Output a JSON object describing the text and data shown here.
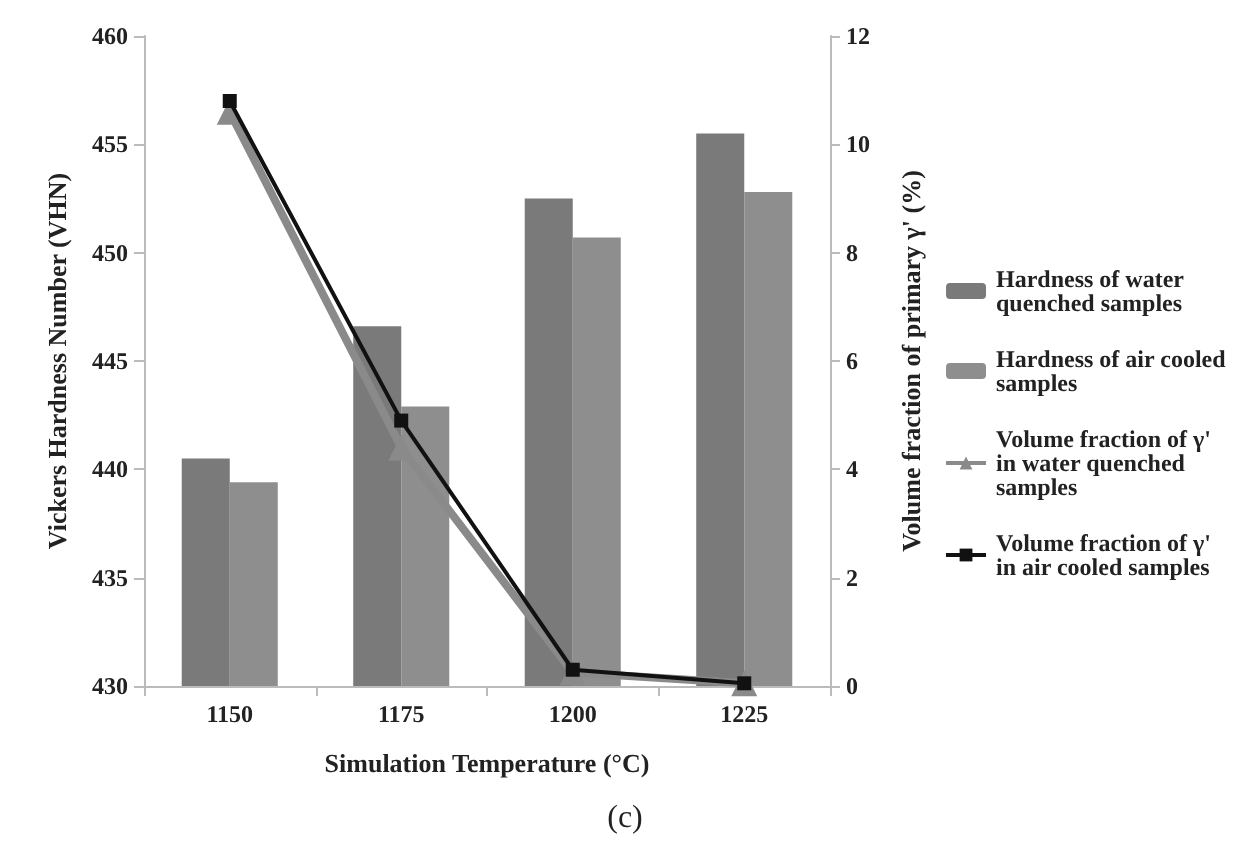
{
  "chart_data": {
    "type": "bar",
    "xlabel": "Simulation Temperature (°C)",
    "ylabel": "Vickers Hardness Number (VHN)",
    "y2label": "Volume fraction of primary γ' (%)",
    "categories": [
      "1150",
      "1175",
      "1200",
      "1225"
    ],
    "series": [
      {
        "name": "Hardness of water quenched samples",
        "color": "#7a7a7a",
        "values": [
          440.5,
          446.6,
          452.5,
          455.5
        ]
      },
      {
        "name": "Hardness of air cooled samples",
        "color": "#8e8e8e",
        "values": [
          439.4,
          442.9,
          450.7,
          452.8
        ]
      },
      {
        "name": "Volume fraction of γ' in water quenched samples",
        "type": "line",
        "axis": "y2",
        "marker": "triangle",
        "color": "#8a8a8a",
        "values": [
          10.6,
          4.4,
          0.25,
          0.05
        ]
      },
      {
        "name": "Volume fraction of γ' in air cooled samples",
        "type": "line",
        "axis": "y2",
        "marker": "square",
        "color": "#111111",
        "values": [
          10.8,
          4.9,
          0.3,
          0.05
        ]
      }
    ],
    "ylim": [
      430,
      460
    ],
    "yticks": [
      430,
      435,
      440,
      445,
      450,
      455,
      460
    ],
    "y2lim": [
      0,
      12
    ],
    "y2ticks": [
      0,
      2,
      4,
      6,
      8,
      10,
      12
    ],
    "grid": false,
    "legend": "right",
    "annotations": [
      "(c)"
    ]
  }
}
